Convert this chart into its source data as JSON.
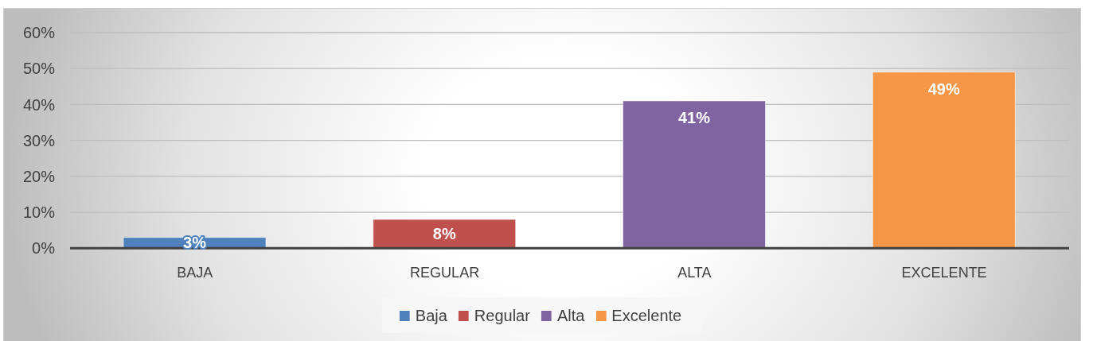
{
  "chart_data": {
    "type": "bar",
    "categories": [
      "BAJA",
      "REGULAR",
      "ALTA",
      "EXCELENTE"
    ],
    "series": [
      {
        "name": "Baja",
        "color": "#4f81bd",
        "values": [
          3,
          null,
          null,
          null
        ],
        "value_labels": [
          "3%",
          null,
          null,
          null
        ]
      },
      {
        "name": "Regular",
        "color": "#c0504d",
        "values": [
          null,
          8,
          null,
          null
        ],
        "value_labels": [
          null,
          "8%",
          null,
          null
        ]
      },
      {
        "name": "Alta",
        "color": "#8064a2",
        "values": [
          null,
          null,
          41,
          null
        ],
        "value_labels": [
          null,
          null,
          "41%",
          null
        ]
      },
      {
        "name": "Excelente",
        "color": "#f79646",
        "values": [
          null,
          null,
          null,
          49
        ],
        "value_labels": [
          null,
          null,
          null,
          "49%"
        ]
      }
    ],
    "ylim": [
      0,
      60
    ],
    "yticks": [
      {
        "value": 0,
        "label": "0%"
      },
      {
        "value": 10,
        "label": "10%"
      },
      {
        "value": 20,
        "label": "20%"
      },
      {
        "value": 30,
        "label": "30%"
      },
      {
        "value": 40,
        "label": "40%"
      },
      {
        "value": 50,
        "label": "50%"
      },
      {
        "value": 60,
        "label": "60%"
      }
    ],
    "grid": "y",
    "legend": "bottom"
  }
}
